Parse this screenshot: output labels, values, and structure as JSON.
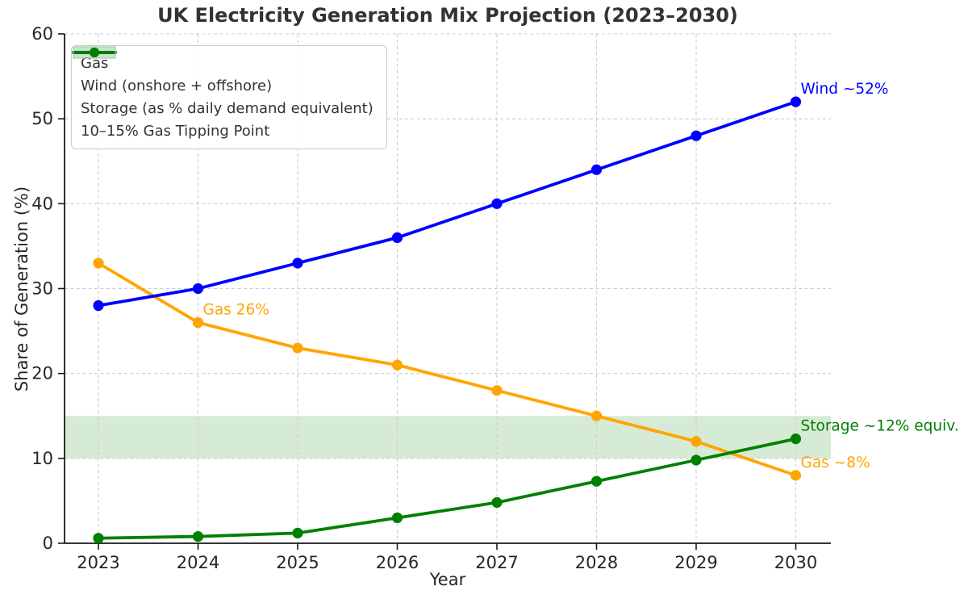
{
  "chart_data": {
    "type": "line",
    "title": "UK Electricity Generation Mix Projection (2023–2030)",
    "xlabel": "Year",
    "ylabel": "Share of Generation (%)",
    "x": [
      2023,
      2024,
      2025,
      2026,
      2027,
      2028,
      2029,
      2030
    ],
    "ylim": [
      0,
      60
    ],
    "yticks": [
      0,
      10,
      20,
      30,
      40,
      50,
      60
    ],
    "grid": {
      "show": true,
      "style": "dashed",
      "color": "#cccccc"
    },
    "legend_position": "upper left",
    "series": [
      {
        "name": "Gas",
        "color": "#FFA500",
        "values": [
          33,
          26,
          23,
          21,
          18,
          15,
          12,
          8
        ]
      },
      {
        "name": "Wind (onshore + offshore)",
        "color": "#0000FF",
        "values": [
          28,
          30,
          33,
          36,
          40,
          44,
          48,
          52
        ]
      },
      {
        "name": "Storage (as % daily demand equivalent)",
        "color": "#008000",
        "values": [
          0.6,
          0.8,
          1.2,
          3,
          4.8,
          7.3,
          9.8,
          12.3
        ]
      }
    ],
    "band": {
      "label": "10–15% Gas Tipping Point",
      "ymin": 10,
      "ymax": 15,
      "color": "#008000",
      "opacity": 0.16
    },
    "annotations": [
      {
        "text": "Gas 26%",
        "x": 2024,
        "y": 26,
        "color": "#FFA500"
      },
      {
        "text": "Wind ~52%",
        "x": 2030,
        "y": 52,
        "color": "#0000FF"
      },
      {
        "text": "Storage ~12% equiv.",
        "x": 2030,
        "y": 12.3,
        "color": "#008000"
      },
      {
        "text": "Gas ~8%",
        "x": 2030,
        "y": 8,
        "color": "#FFA500"
      }
    ]
  }
}
